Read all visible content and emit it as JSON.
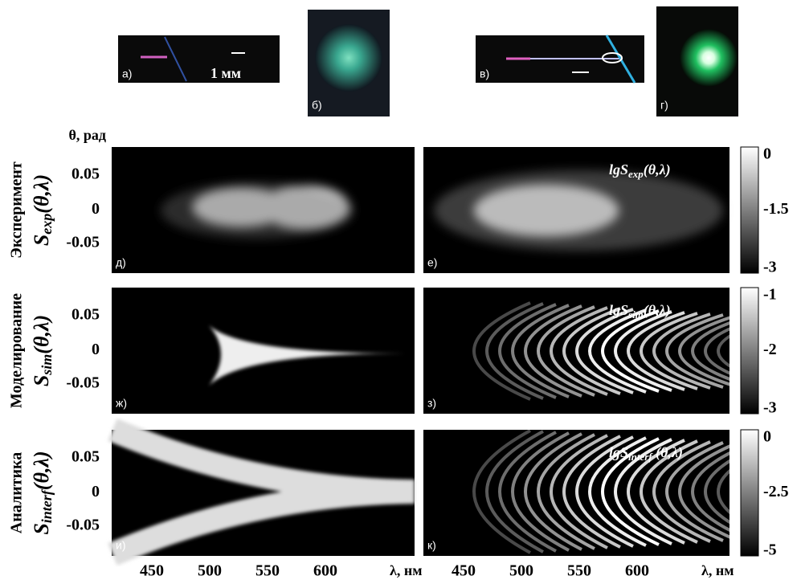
{
  "top_panels": [
    {
      "label": "а)",
      "scale": "1 мм"
    },
    {
      "label": "б)"
    },
    {
      "label": "в)"
    },
    {
      "label": "г)"
    }
  ],
  "y_axis_title": "θ, рад",
  "rows": [
    {
      "row_label": "Эксперимент",
      "formula": {
        "base": "S",
        "sub": "exp",
        "arg": "(θ,λ)"
      },
      "left_label": "д)",
      "right_label": "е)",
      "right_formula": {
        "base": "lgS",
        "sub": "exp",
        "arg": "(θ,λ)"
      },
      "yticks": [
        "0.05",
        "0",
        "-0.05"
      ],
      "colorbar_ticks": [
        "0",
        "-1.5",
        "-3"
      ]
    },
    {
      "row_label": "Моделирование",
      "formula": {
        "base": "S",
        "sub": "sim",
        "arg": "(θ,λ)"
      },
      "left_label": "ж)",
      "right_label": "з)",
      "right_formula": {
        "base": "lgS",
        "sub": "sim",
        "arg": "(θ,λ)"
      },
      "yticks": [
        "0.05",
        "0",
        "-0.05"
      ],
      "colorbar_ticks": [
        "-1",
        "-2",
        "-3"
      ]
    },
    {
      "row_label": "Аналитика",
      "formula": {
        "base": "S",
        "sub": "interf",
        "arg": "(θ,λ)"
      },
      "left_label": "и)",
      "right_label": "к)",
      "right_formula": {
        "base": "lgS",
        "sub": "interf",
        "arg": " (θ,λ)"
      },
      "yticks": [
        "0.05",
        "0",
        "-0.05"
      ],
      "colorbar_ticks": [
        "0",
        "-2.5",
        "-5"
      ]
    }
  ],
  "xticks": [
    "450",
    "500",
    "550",
    "600"
  ],
  "x_axis_title": "λ, нм"
}
